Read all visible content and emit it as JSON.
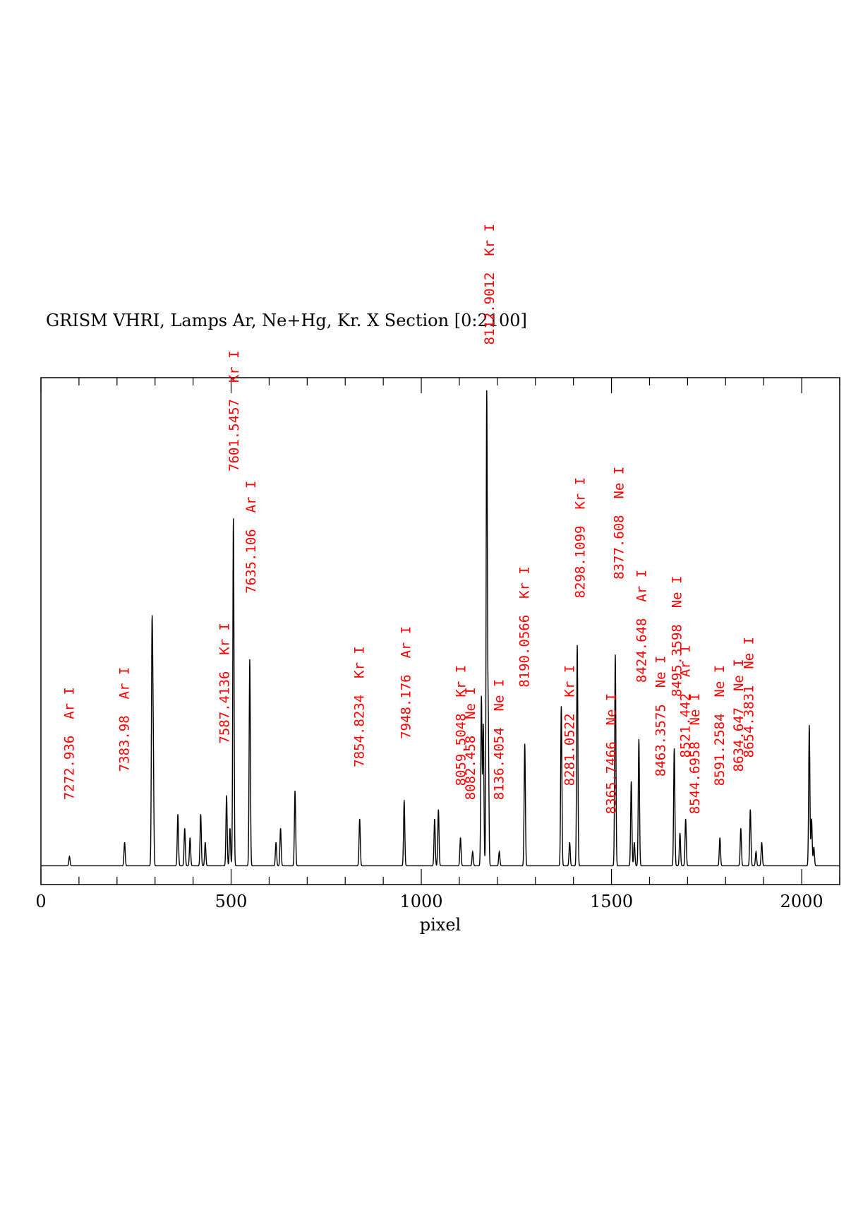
{
  "chart_data": {
    "type": "line",
    "title": "GRISM VHRI, Lamps Ar, Ne+Hg, Kr. X Section [0:2100]",
    "xlabel": "pixel",
    "ylabel": "",
    "xlim": [
      0,
      2100
    ],
    "ylim": [
      -0.04,
      1.04
    ],
    "x_ticks": [
      0,
      500,
      1000,
      1500,
      2000
    ],
    "grid": false,
    "legend": "none",
    "colors": {
      "spectrum": "#000000",
      "labels": "#ff0000",
      "frame": "#000000"
    },
    "peaks": [
      {
        "x": 75,
        "y": 0.02
      },
      {
        "x": 220,
        "y": 0.05
      },
      {
        "x": 292,
        "y": 0.48
      },
      {
        "x": 295,
        "y": 0.26
      },
      {
        "x": 360,
        "y": 0.11
      },
      {
        "x": 378,
        "y": 0.08
      },
      {
        "x": 392,
        "y": 0.06
      },
      {
        "x": 420,
        "y": 0.11
      },
      {
        "x": 432,
        "y": 0.05
      },
      {
        "x": 488,
        "y": 0.15
      },
      {
        "x": 497,
        "y": 0.08
      },
      {
        "x": 506,
        "y": 0.74
      },
      {
        "x": 549,
        "y": 0.44
      },
      {
        "x": 618,
        "y": 0.05
      },
      {
        "x": 630,
        "y": 0.08
      },
      {
        "x": 668,
        "y": 0.16
      },
      {
        "x": 838,
        "y": 0.1
      },
      {
        "x": 955,
        "y": 0.14
      },
      {
        "x": 1035,
        "y": 0.1
      },
      {
        "x": 1045,
        "y": 0.12
      },
      {
        "x": 1103,
        "y": 0.06
      },
      {
        "x": 1135,
        "y": 0.03
      },
      {
        "x": 1158,
        "y": 0.36
      },
      {
        "x": 1163,
        "y": 0.3
      },
      {
        "x": 1172,
        "y": 1.0
      },
      {
        "x": 1176,
        "y": 0.3
      },
      {
        "x": 1205,
        "y": 0.03
      },
      {
        "x": 1272,
        "y": 0.26
      },
      {
        "x": 1368,
        "y": 0.34
      },
      {
        "x": 1390,
        "y": 0.05
      },
      {
        "x": 1410,
        "y": 0.47
      },
      {
        "x": 1510,
        "y": 0.45
      },
      {
        "x": 1552,
        "y": 0.18
      },
      {
        "x": 1560,
        "y": 0.05
      },
      {
        "x": 1572,
        "y": 0.27
      },
      {
        "x": 1665,
        "y": 0.25
      },
      {
        "x": 1680,
        "y": 0.07
      },
      {
        "x": 1695,
        "y": 0.1
      },
      {
        "x": 1785,
        "y": 0.06
      },
      {
        "x": 1840,
        "y": 0.08
      },
      {
        "x": 1865,
        "y": 0.12
      },
      {
        "x": 1880,
        "y": 0.03
      },
      {
        "x": 1895,
        "y": 0.05
      },
      {
        "x": 2020,
        "y": 0.3
      },
      {
        "x": 2026,
        "y": 0.1
      },
      {
        "x": 2032,
        "y": 0.04
      }
    ],
    "annotations": [
      {
        "x": 75,
        "text": "7272.936  Ar I",
        "y_bottom": 0.14
      },
      {
        "x": 220,
        "text": "7383.98  Ar I",
        "y_bottom": 0.2
      },
      {
        "x": 483,
        "text": "7587.4136  Kr I",
        "y_bottom": 0.26
      },
      {
        "x": 508,
        "text": "7601.5457  Kr I",
        "y_bottom": 0.84
      },
      {
        "x": 553,
        "text": "7635.106  Ar I",
        "y_bottom": 0.58
      },
      {
        "x": 838,
        "text": "7854.8234  Kr I",
        "y_bottom": 0.21
      },
      {
        "x": 960,
        "text": "7948.176  Ar I",
        "y_bottom": 0.27
      },
      {
        "x": 1105,
        "text": "8059.5048  Kr I",
        "y_bottom": 0.17
      },
      {
        "x": 1130,
        "text": "8082.458  Ne I",
        "y_bottom": 0.14
      },
      {
        "x": 1180,
        "text": "8112.9012  Kr I",
        "y_bottom": 1.11
      },
      {
        "x": 1205,
        "text": "8136.4054  Ne I",
        "y_bottom": 0.14
      },
      {
        "x": 1272,
        "text": "8190.0566  Kr I",
        "y_bottom": 0.38
      },
      {
        "x": 1390,
        "text": "8281.0522  Kr I",
        "y_bottom": 0.17
      },
      {
        "x": 1418,
        "text": "8298.1099  Kr I",
        "y_bottom": 0.57
      },
      {
        "x": 1500,
        "text": "8365.7466  Ne I",
        "y_bottom": 0.11
      },
      {
        "x": 1520,
        "text": "8377.608  Ne I",
        "y_bottom": 0.61
      },
      {
        "x": 1580,
        "text": "8424.648  Ar I",
        "y_bottom": 0.39
      },
      {
        "x": 1630,
        "text": "8463.3575  Ne I",
        "y_bottom": 0.19
      },
      {
        "x": 1672,
        "text": "8495.3598  Ne I",
        "y_bottom": 0.36
      },
      {
        "x": 1695,
        "text": "8521.442  Ar I",
        "y_bottom": 0.23
      },
      {
        "x": 1720,
        "text": "8544.6958  Ne I",
        "y_bottom": 0.11
      },
      {
        "x": 1785,
        "text": "8591.2584  Ne I",
        "y_bottom": 0.17
      },
      {
        "x": 1835,
        "text": "8634.647  Ne I",
        "y_bottom": 0.2
      },
      {
        "x": 1862,
        "text": "8654.3831  Ne I",
        "y_bottom": 0.23
      }
    ]
  }
}
